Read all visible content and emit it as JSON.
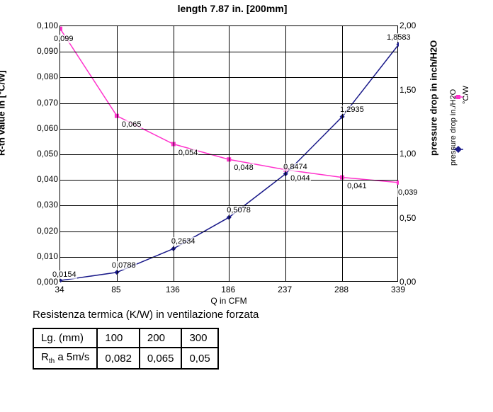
{
  "chart": {
    "title": "length 7.87 in. [200mm]",
    "title_fontsize": 14,
    "x_label": "Q in CFM",
    "y_left_label": "R-th value in [°C/W]",
    "y_right_label": "pressure drop in inch/H2O",
    "x_ticks": [
      34,
      85,
      136,
      186,
      237,
      288,
      339
    ],
    "y_left_ticks": [
      "0,000",
      "0,010",
      "0,020",
      "0,030",
      "0,040",
      "0,050",
      "0,060",
      "0,070",
      "0,080",
      "0,090",
      "0,100"
    ],
    "y_left_lim": [
      0,
      0.1
    ],
    "y_right_ticks": [
      "0,00",
      "0,50",
      "1,00",
      "1,50",
      "2,00"
    ],
    "y_right_lim": [
      0,
      2.0
    ],
    "grid_color": "#000000",
    "background_color": "#ffffff",
    "series": {
      "rth": {
        "name": "°C/W",
        "color": "#ff33cc",
        "marker": "square",
        "marker_size": 6,
        "line_width": 1.5,
        "axis": "left",
        "x": [
          34,
          85,
          136,
          186,
          237,
          288,
          339
        ],
        "y": [
          0.099,
          0.065,
          0.054,
          0.048,
          0.044,
          0.041,
          0.039
        ],
        "labels": [
          "0,099",
          "0,065",
          "0,054",
          "0,048",
          "0,044",
          "0,041",
          "0,039"
        ]
      },
      "pdrop": {
        "name": "pressure drop in./H2O",
        "color": "#1a1a8a",
        "marker": "diamond",
        "marker_size": 7,
        "line_width": 1.5,
        "axis": "right",
        "x": [
          34,
          85,
          136,
          186,
          237,
          288,
          339
        ],
        "y": [
          0.0154,
          0.0788,
          0.2634,
          0.5078,
          0.8474,
          1.2935,
          1.8583
        ],
        "labels": [
          "0,0154",
          "0,0788",
          "0,2634",
          "0,5078",
          "0,8474",
          "1,2935",
          "1,8583"
        ]
      }
    },
    "legend": {
      "items": [
        "rth",
        "pdrop"
      ]
    }
  },
  "caption": "Resistenza termica (K/W) in ventilazione forzata",
  "table": {
    "columns": [
      "Lg. (mm)",
      "100",
      "200",
      "300"
    ],
    "rows": [
      [
        "R₋th₋ a 5m/s",
        "0,082",
        "0,065",
        "0,05"
      ]
    ],
    "row1_label_html": "R<sub>th</sub> a 5m/s"
  }
}
